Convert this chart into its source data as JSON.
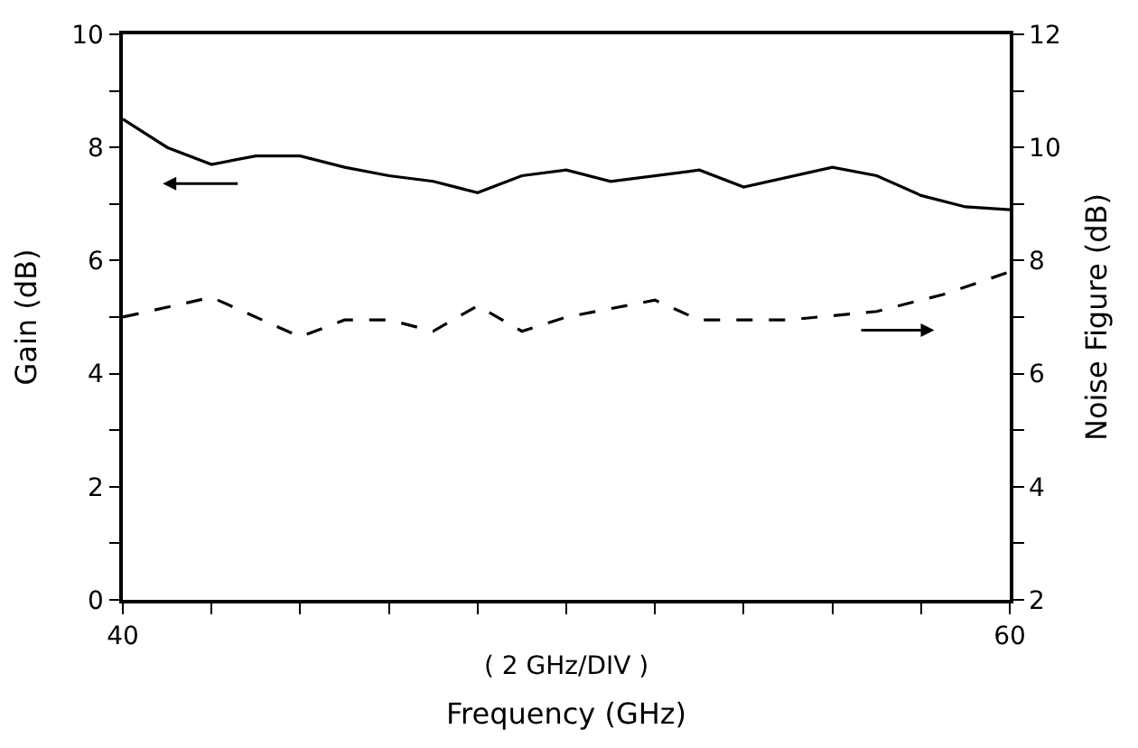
{
  "chart_data": {
    "type": "line",
    "xlabel": "Frequency (GHz)",
    "ylabel": "Gain (dB)",
    "y2label": "Noise Figure (dB)",
    "series": [
      {
        "color": "#000000",
        "line_style": "solid",
        "x": [
          40,
          41,
          42,
          43,
          44,
          45,
          46,
          47,
          48,
          49,
          50,
          51,
          53,
          54,
          56,
          57,
          58,
          59,
          60
        ],
        "values": [
          8.5,
          8.0,
          7.7,
          7.85,
          7.85,
          7.65,
          7.5,
          7.4,
          7.2,
          7.5,
          7.6,
          7.4,
          7.6,
          7.3,
          7.65,
          7.5,
          7.15,
          6.95,
          6.9
        ]
      },
      {
        "color": "#000000",
        "line_style": "dashed",
        "axis": "y2",
        "x": [
          40,
          42,
          44,
          45,
          46,
          47,
          48,
          49,
          50,
          52,
          53,
          55,
          57,
          58.5,
          60
        ],
        "values": [
          7.0,
          7.35,
          6.65,
          6.95,
          6.95,
          6.75,
          7.2,
          6.75,
          7.0,
          7.3,
          6.95,
          6.95,
          7.1,
          7.4,
          7.8
        ]
      }
    ],
    "annotations": [
      "( 2 GHz/DIV )"
    ],
    "xlim": [
      40,
      60
    ],
    "xticks": [
      40,
      {
        "value": 42,
        "label": null
      },
      {
        "value": 44,
        "label": null
      },
      {
        "value": 46,
        "label": null
      },
      {
        "value": 48,
        "label": null
      },
      {
        "value": 50,
        "label": null
      },
      {
        "value": 52,
        "label": null
      },
      {
        "value": 54,
        "label": null
      },
      {
        "value": 56,
        "label": null
      },
      {
        "value": 58,
        "label": null
      },
      60
    ],
    "ylim": [
      0,
      10
    ],
    "yticks": [
      0,
      {
        "value": 1,
        "label": null
      },
      2,
      {
        "value": 3,
        "label": null
      },
      4,
      {
        "value": 5,
        "label": null
      },
      6,
      {
        "value": 7,
        "label": null
      },
      8,
      {
        "value": 9,
        "label": null
      },
      10
    ],
    "y2lim": [
      2,
      12
    ],
    "y2ticks": [
      2,
      {
        "value": 3,
        "label": null
      },
      4,
      {
        "value": 5,
        "label": null
      },
      6,
      {
        "value": 7,
        "label": null
      },
      8,
      {
        "value": 9,
        "label": null
      },
      10,
      {
        "value": 11,
        "label": null
      },
      12
    ],
    "legend": false,
    "marker": "none"
  }
}
